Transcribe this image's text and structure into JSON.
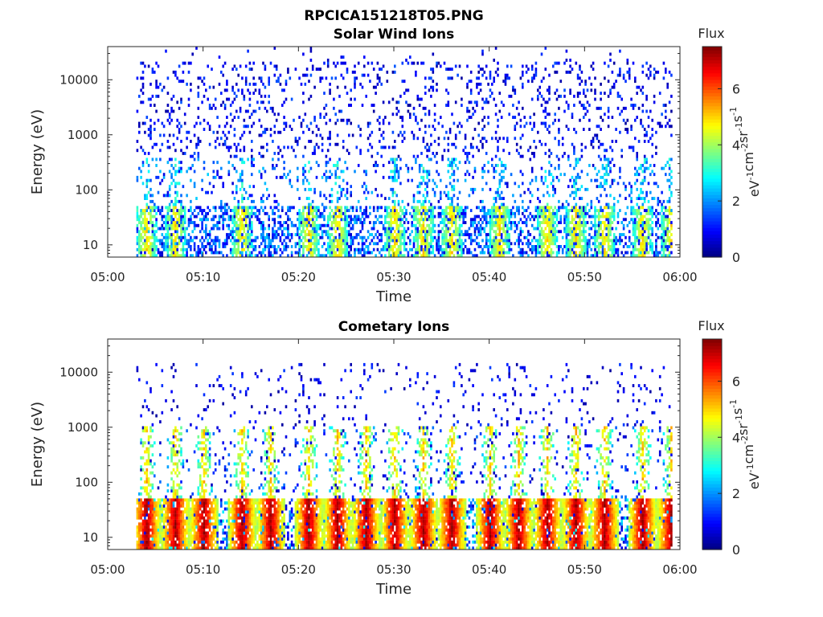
{
  "figure_title": "RPCICA151218T05.PNG",
  "colorbar": {
    "title": "Flux",
    "label_parts": [
      "eV",
      "-1",
      "cm",
      "-2",
      "sr",
      "-1",
      "s",
      "-1"
    ],
    "ticks": [
      "0",
      "2",
      "4",
      "6"
    ],
    "range": [
      0,
      7.5
    ],
    "colormap": "jet"
  },
  "chart_data": [
    {
      "type": "heatmap",
      "title": "Solar Wind Ions",
      "xlabel": "Time",
      "ylabel": "Energy (eV)",
      "x_ticks": [
        "05:00",
        "05:10",
        "05:20",
        "05:30",
        "05:40",
        "05:50",
        "06:00"
      ],
      "xlim": [
        "05:00",
        "06:00"
      ],
      "y_ticks": [
        "10",
        "100",
        "1000",
        "10000"
      ],
      "ylim": [
        6,
        40000
      ],
      "yscale": "log",
      "data_start": "05:03",
      "data_end": "05:59",
      "value_range": [
        0,
        7.5
      ],
      "dominant_values": "0-4 (sparse, low flux)",
      "burst_times": [
        "05:04",
        "05:07",
        "05:14",
        "05:21",
        "05:24",
        "05:30",
        "05:33",
        "05:36",
        "05:41",
        "05:46",
        "05:49",
        "05:52",
        "05:56",
        "05:59"
      ],
      "burst_peak_energy": [
        10,
        50
      ]
    },
    {
      "type": "heatmap",
      "title": "Cometary Ions",
      "xlabel": "Time",
      "ylabel": "Energy (eV)",
      "x_ticks": [
        "05:00",
        "05:10",
        "05:20",
        "05:30",
        "05:40",
        "05:50",
        "06:00"
      ],
      "xlim": [
        "05:00",
        "06:00"
      ],
      "y_ticks": [
        "10",
        "100",
        "1000",
        "10000"
      ],
      "ylim": [
        6,
        40000
      ],
      "yscale": "log",
      "data_start": "05:03",
      "data_end": "05:59",
      "value_range": [
        0,
        7.5
      ],
      "dominant_values": "5-7 (intense bursts below 50 eV)",
      "burst_times": [
        "05:04",
        "05:07",
        "05:10",
        "05:14",
        "05:17",
        "05:21",
        "05:24",
        "05:27",
        "05:30",
        "05:33",
        "05:36",
        "05:40",
        "05:43",
        "05:46",
        "05:49",
        "05:52",
        "05:56",
        "05:59"
      ],
      "burst_peak_energy": [
        10,
        50
      ]
    }
  ]
}
